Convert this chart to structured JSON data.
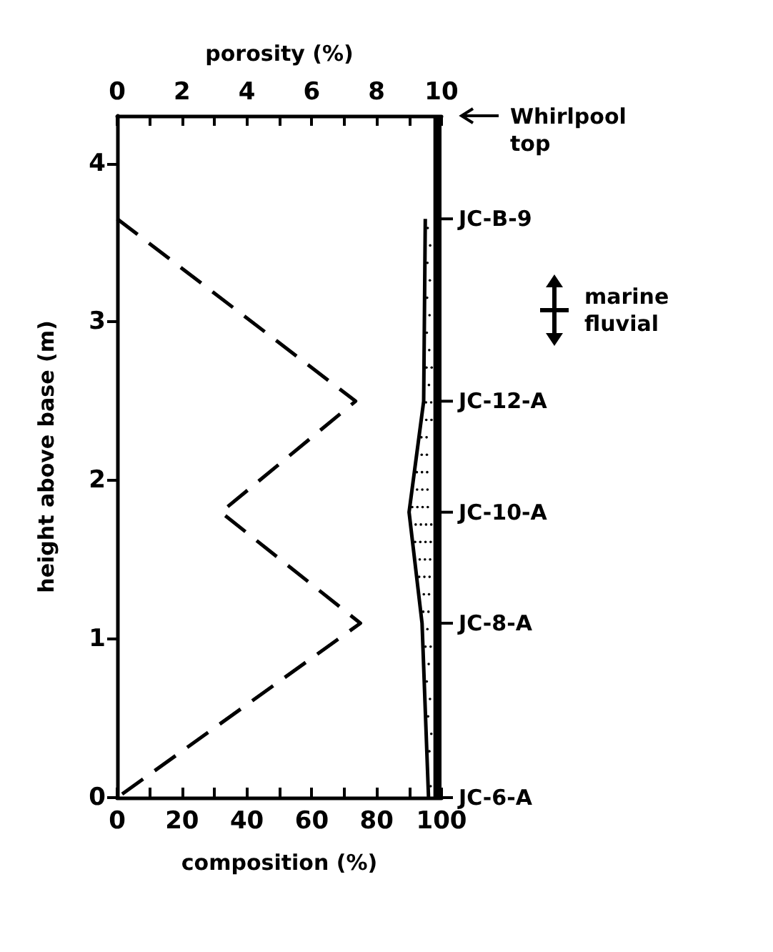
{
  "chart_data": {
    "type": "line",
    "xlabel": "composition (%)",
    "x2label": "porosity (%)",
    "ylabel": "height above base (m)",
    "xlim": [
      0,
      100
    ],
    "xticks": [
      0,
      {
        "value": 10,
        "label": null
      },
      20,
      {
        "value": 30,
        "label": null
      },
      40,
      {
        "value": 50,
        "label": null
      },
      60,
      {
        "value": 70,
        "label": null
      },
      80,
      {
        "value": 90,
        "label": null
      },
      100
    ],
    "x2lim": [
      0,
      10
    ],
    "x2ticks": [
      0,
      {
        "value": 1,
        "label": null
      },
      2,
      {
        "value": 3,
        "label": null
      },
      4,
      {
        "value": 5,
        "label": null
      },
      6,
      {
        "value": 7,
        "label": null
      },
      8,
      {
        "value": 9,
        "label": null
      },
      10
    ],
    "ylim": [
      0,
      4.3
    ],
    "yticks": [
      0,
      1,
      2,
      3,
      4
    ],
    "series": [
      {
        "type": "line",
        "axis": "x2",
        "color": "#000000",
        "line_style": "dashed",
        "marker": "none",
        "x": [
          0,
          7.35,
          3.2,
          7.5,
          0
        ],
        "values": [
          3.65,
          2.5,
          1.8,
          1.1,
          0
        ]
      },
      {
        "color": "#000000",
        "line_style": "solid",
        "marker": "none",
        "x": [
          95,
          94.5,
          90,
          94,
          96
        ],
        "values": [
          3.65,
          2.5,
          1.8,
          1.1,
          0
        ]
      }
    ],
    "bands": [
      {
        "axis": "x",
        "from": 97.5,
        "to": 100,
        "color": "#000000"
      }
    ],
    "annotations": [
      "Whirlpool\ntop",
      "JC-B-9",
      "marine\nfluvial",
      "JC-12-A",
      "JC-10-A",
      "JC-8-A",
      "JC-6-A"
    ],
    "grid": false
  }
}
